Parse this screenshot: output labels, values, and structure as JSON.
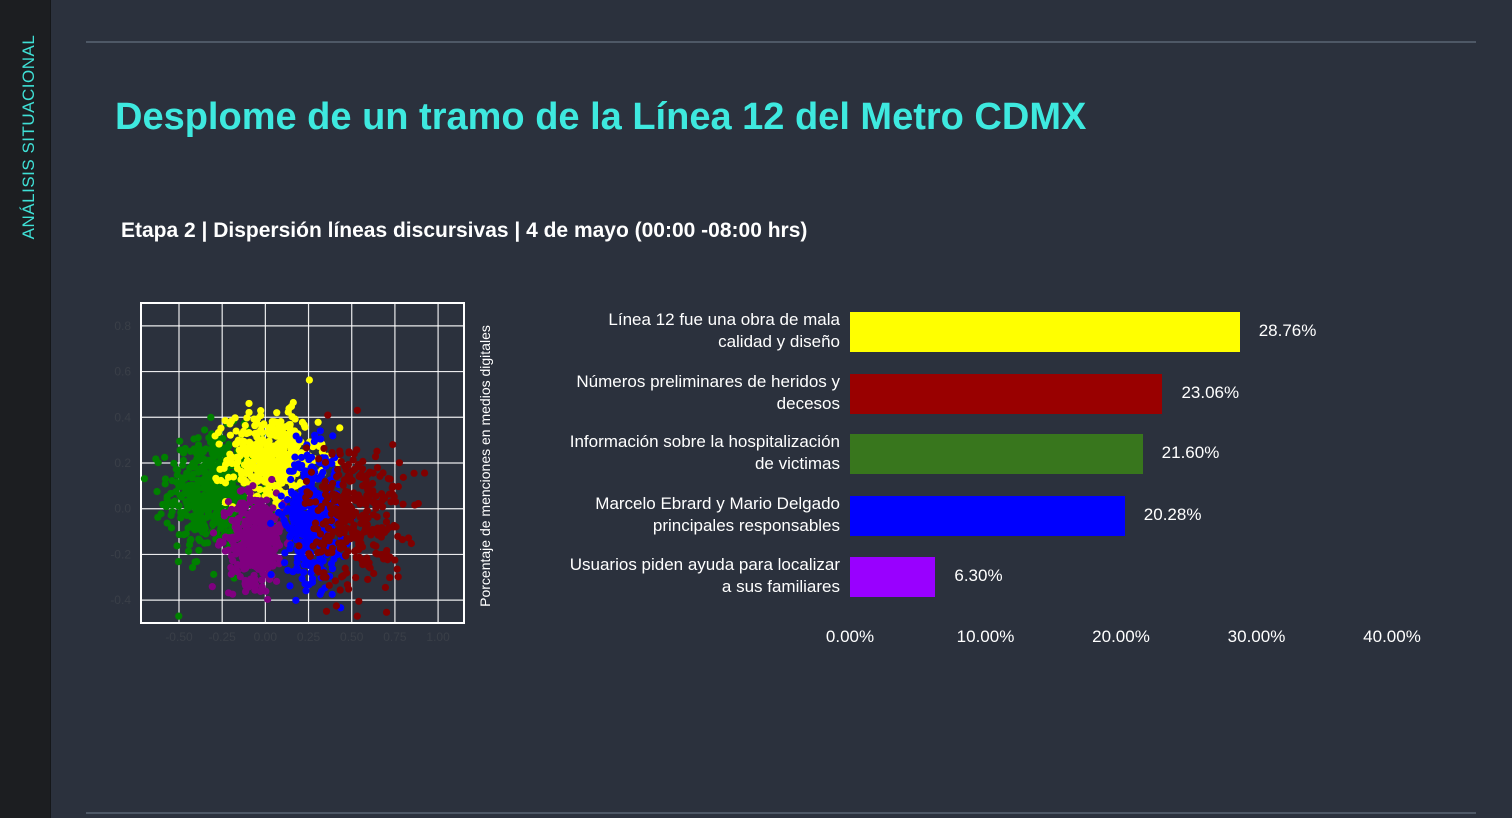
{
  "side_label": "ANÁLISIS SITUACIONAL",
  "title": "Desplome de un tramo de la Línea 12 del Metro CDMX",
  "subtitle": "Etapa 2 | Dispersión líneas discursivas | 4 de mayo (00:00 -08:00 hrs)",
  "colors": {
    "title": "#3ee9df",
    "background": "#2b313d",
    "sidebar": "#1c1e21"
  },
  "chart_data": [
    {
      "type": "scatter",
      "xlim": [
        -0.72,
        1.15
      ],
      "ylim": [
        -0.5,
        0.9
      ],
      "grid": true,
      "xticks": [
        "-0.50",
        "-0.25",
        "0.00",
        "0.25",
        "0.50",
        "0.75",
        "1.00"
      ],
      "yticks": [
        "0.8",
        "0.6",
        "0.4",
        "0.2",
        "0.0",
        "-0.2",
        "-0.4"
      ],
      "clusters": [
        {
          "color": "#008000",
          "center": [
            -0.3,
            0.07
          ],
          "spread": [
            0.13,
            0.13
          ],
          "count": 520
        },
        {
          "color": "#ffff00",
          "center": [
            0.04,
            0.22
          ],
          "spread": [
            0.13,
            0.1
          ],
          "count": 420
        },
        {
          "color": "#800080",
          "center": [
            -0.05,
            -0.13
          ],
          "spread": [
            0.08,
            0.1
          ],
          "count": 380
        },
        {
          "color": "#0000ff",
          "center": [
            0.27,
            -0.03
          ],
          "spread": [
            0.08,
            0.14
          ],
          "count": 420
        },
        {
          "color": "#800000",
          "center": [
            0.52,
            -0.03
          ],
          "spread": [
            0.14,
            0.16
          ],
          "count": 330
        }
      ]
    },
    {
      "type": "bar",
      "orientation": "horizontal",
      "ylabel": "Porcentaje de menciones en medios digitales",
      "xlim": [
        0,
        40
      ],
      "xticks": [
        "0.00%",
        "10.00%",
        "20.00%",
        "30.00%",
        "40.00%"
      ],
      "categories": [
        {
          "line1": "Línea 12 fue una obra de mala",
          "line2": "calidad y diseño"
        },
        {
          "line1": "Números preliminares de heridos y",
          "line2": "decesos"
        },
        {
          "line1": "Información sobre la hospitalización",
          "line2": "de victimas"
        },
        {
          "line1": "Marcelo Ebrard y Mario Delgado",
          "line2": "principales responsables"
        },
        {
          "line1": "Usuarios piden ayuda para localizar",
          "line2": "a sus familiares"
        }
      ],
      "values": [
        28.76,
        23.06,
        21.6,
        20.28,
        6.3
      ],
      "value_labels": [
        "28.76%",
        "23.06%",
        "21.60%",
        "20.28%",
        "6.30%"
      ],
      "colors": [
        "#ffff00",
        "#990000",
        "#38761d",
        "#0000ff",
        "#9900ff"
      ]
    }
  ]
}
